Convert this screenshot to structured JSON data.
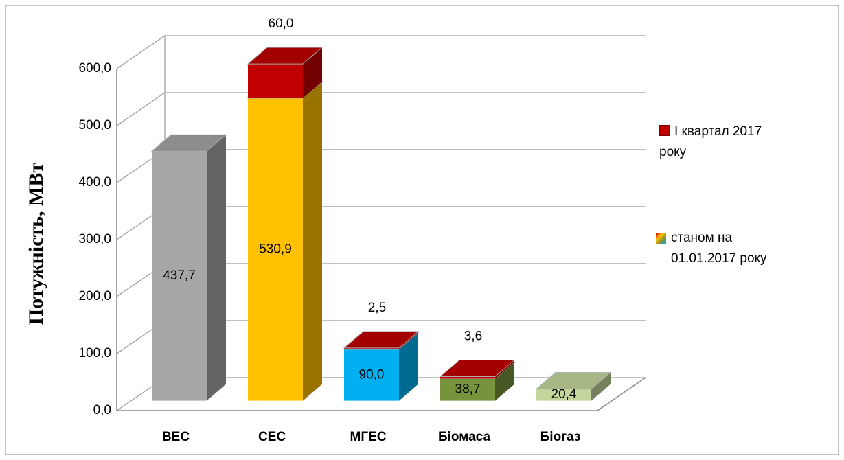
{
  "chart_data": {
    "type": "bar3d_stacked",
    "y_axis_label": "Потужність, МВт",
    "categories": [
      "ВЕС",
      "СЕС",
      "МГЕС",
      "Біомаса",
      "Біогаз"
    ],
    "series": [
      {
        "name": "станом на 01.01.2017 року",
        "colors": [
          "#a6a6a6",
          "#ffc000",
          "#00b0f0",
          "#77933c",
          "#c3d69b"
        ],
        "values": [
          437.7,
          530.9,
          90.0,
          38.7,
          20.4
        ],
        "value_labels": [
          "437,7",
          "530,9",
          "90,0",
          "38,7",
          "20,4"
        ]
      },
      {
        "name": "І квартал 2017 року",
        "color": "#c00000",
        "values": [
          null,
          60.0,
          2.5,
          3.6,
          null
        ],
        "value_labels": [
          null,
          "60,0",
          "2,5",
          "3,6",
          null
        ]
      }
    ],
    "ylim": [
      0,
      600
    ],
    "yticks": [
      {
        "value": 0,
        "label": "0,0"
      },
      {
        "value": 100,
        "label": "100,0"
      },
      {
        "value": 200,
        "label": "200,0"
      },
      {
        "value": 300,
        "label": "300,0"
      },
      {
        "value": 400,
        "label": "400,0"
      },
      {
        "value": 500,
        "label": "500,0"
      },
      {
        "value": 600,
        "label": "600,0"
      }
    ],
    "grid": true
  }
}
